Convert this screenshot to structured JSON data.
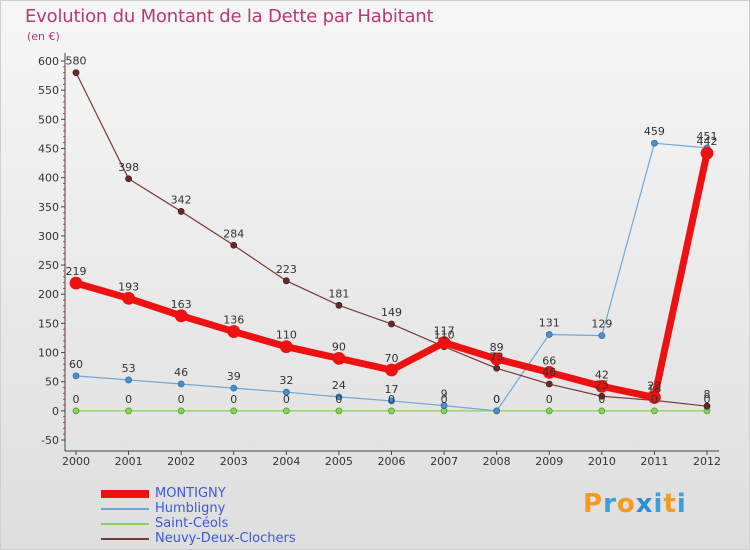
{
  "chart_data": {
    "type": "line",
    "title": "Evolution du Montant de la Dette par Habitant",
    "subtitle": "(en €)",
    "x": [
      "2000",
      "2001",
      "2002",
      "2003",
      "2004",
      "2005",
      "2006",
      "2007",
      "2008",
      "2009",
      "2010",
      "2011",
      "2012"
    ],
    "ylim": [
      -50,
      600
    ],
    "yticks": [
      -50,
      0,
      50,
      100,
      150,
      200,
      250,
      300,
      350,
      400,
      450,
      500,
      550,
      600
    ],
    "grid": false,
    "legend_position": "bottom-left",
    "series": [
      {
        "name": "MONTIGNY",
        "color": "#ee1111",
        "values": [
          219,
          193,
          163,
          136,
          110,
          90,
          70,
          117,
          89,
          66,
          42,
          23,
          442
        ]
      },
      {
        "name": "Humbligny",
        "color": "#6fa8d6",
        "values": [
          60,
          53,
          46,
          39,
          32,
          24,
          17,
          9,
          0,
          131,
          129,
          459,
          451
        ]
      },
      {
        "name": "Saint-Céols",
        "color": "#88d456",
        "values": [
          0,
          0,
          0,
          0,
          0,
          0,
          0,
          0,
          0,
          0,
          0,
          0,
          0
        ]
      },
      {
        "name": "Neuvy-Deux-Clochers",
        "color": "#7a3a3a",
        "values": [
          580,
          398,
          342,
          284,
          223,
          181,
          149,
          110,
          73,
          46,
          25,
          18,
          8
        ]
      }
    ]
  },
  "logo": {
    "text": "Proxiti",
    "colors": [
      "#f39a1f",
      "#3aa0d9",
      "#f39a1f",
      "#2b8fd6",
      "#3aa0d9",
      "#f39a1f",
      "#3aa0d9"
    ]
  }
}
